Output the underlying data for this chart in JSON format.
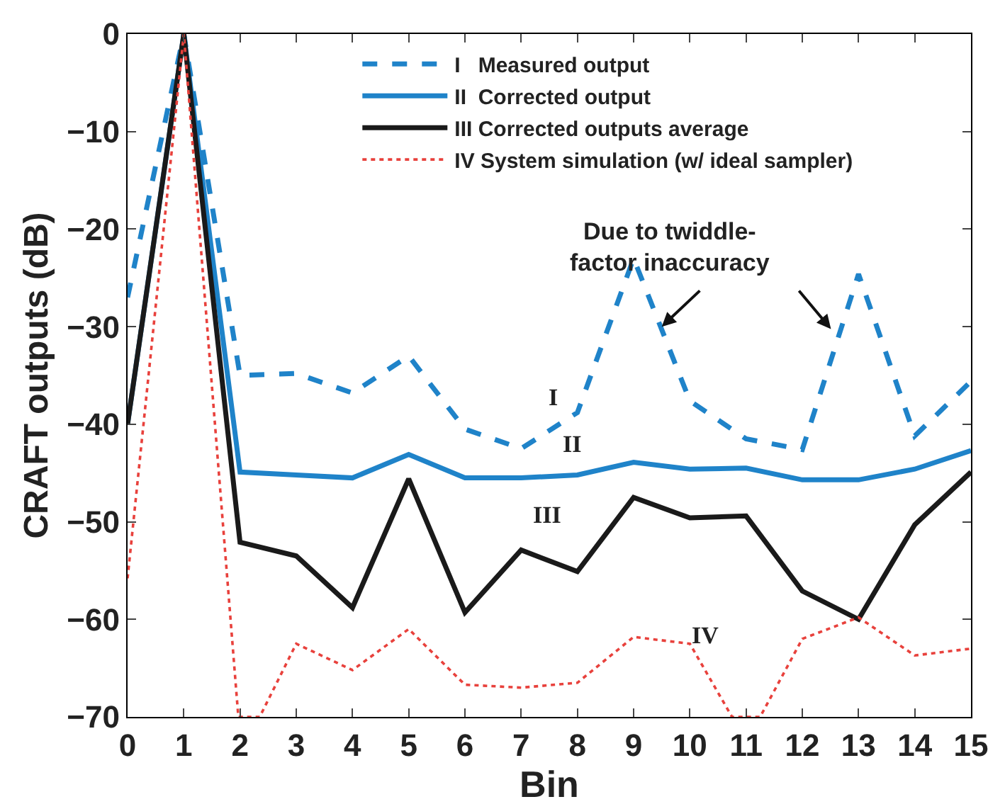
{
  "chart_data": {
    "type": "line",
    "xlabel": "Bin",
    "ylabel": "CRAFT outputs (dB)",
    "xlim": [
      0,
      15
    ],
    "xticks": [
      0,
      1,
      2,
      3,
      4,
      5,
      6,
      7,
      8,
      9,
      10,
      11,
      12,
      13,
      14,
      15
    ],
    "ylim": [
      -70,
      0
    ],
    "yticks": [
      -70,
      -60,
      -50,
      -40,
      -30,
      -20,
      -10,
      0
    ],
    "legend": "top",
    "marker": "none",
    "x": [
      0,
      1,
      2,
      3,
      4,
      5,
      6,
      7,
      8,
      9,
      10,
      11,
      12,
      13,
      14,
      15
    ],
    "series": [
      {
        "name": "I   Measured output",
        "color": "#1f83c9",
        "line_style": "dashed",
        "values": [
          -27,
          0,
          -35,
          -34.8,
          -36.8,
          -33,
          -40.5,
          -42.5,
          -38.8,
          -23,
          -37.6,
          -41.5,
          -42.6,
          -24.6,
          -41.2,
          -35.6
        ]
      },
      {
        "name": "II  Corrected output",
        "color": "#1f83c9",
        "line_style": "solid",
        "values": [
          -40,
          0,
          -44.9,
          -45.2,
          -45.5,
          -43.1,
          -45.5,
          -45.5,
          -45.2,
          -43.9,
          -44.6,
          -44.5,
          -45.7,
          -45.7,
          -44.6,
          -42.7
        ]
      },
      {
        "name": "III Corrected outputs average",
        "color": "#1a1a1a",
        "line_style": "solid",
        "values": [
          -40,
          0,
          -52.1,
          -53.5,
          -58.8,
          -45.6,
          -59.3,
          -52.9,
          -55.1,
          -47.5,
          -49.6,
          -49.4,
          -57.1,
          -60,
          -50.3,
          -44.9
        ]
      },
      {
        "name": "IV System simulation (w/ ideal sampler)",
        "color": "#e8413c",
        "line_style": "dotted",
        "x": [
          0,
          1,
          1.97,
          2.35,
          3,
          4,
          5,
          6,
          7,
          8,
          9,
          10,
          10.75,
          11.25,
          12,
          13,
          14,
          15
        ],
        "values": [
          -55.8,
          0,
          -70,
          -70,
          -62.5,
          -65.2,
          -61,
          -66.7,
          -67,
          -66.5,
          -61.8,
          -62.5,
          -70,
          -70,
          -62,
          -59.8,
          -63.7,
          -63
        ]
      }
    ],
    "annotations": [
      "I",
      "II",
      "III",
      "IV",
      {
        "text": "Due to twiddle-\nfactor inaccuracy",
        "x": 9.5,
        "y": -30
      }
    ]
  }
}
